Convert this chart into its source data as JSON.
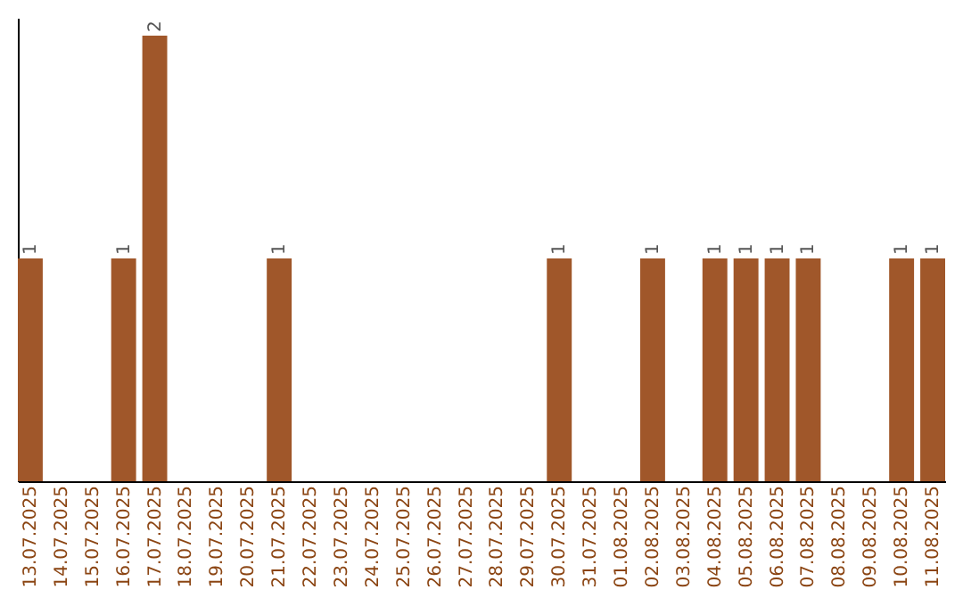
{
  "chart_data": {
    "type": "bar",
    "categories": [
      "13.07.2025",
      "14.07.2025",
      "15.07.2025",
      "16.07.2025",
      "17.07.2025",
      "18.07.2025",
      "19.07.2025",
      "20.07.2025",
      "21.07.2025",
      "22.07.2025",
      "23.07.2025",
      "24.07.2025",
      "25.07.2025",
      "26.07.2025",
      "27.07.2025",
      "28.07.2025",
      "29.07.2025",
      "30.07.2025",
      "31.07.2025",
      "01.08.2025",
      "02.08.2025",
      "03.08.2025",
      "04.08.2025",
      "05.08.2025",
      "06.08.2025",
      "07.08.2025",
      "08.08.2025",
      "09.08.2025",
      "10.08.2025",
      "11.08.2025"
    ],
    "values": [
      1,
      0,
      0,
      1,
      2,
      0,
      0,
      0,
      1,
      0,
      0,
      0,
      0,
      0,
      0,
      0,
      0,
      1,
      0,
      0,
      1,
      0,
      1,
      1,
      1,
      1,
      0,
      0,
      1,
      1
    ],
    "value_labels": [
      "1",
      null,
      null,
      "1",
      "2",
      null,
      null,
      null,
      "1",
      null,
      null,
      null,
      null,
      null,
      null,
      null,
      null,
      "1",
      null,
      null,
      "1",
      null,
      "1",
      "1",
      "1",
      "1",
      null,
      null,
      "1",
      "1"
    ],
    "color": "#a0572a",
    "ylim": [
      0,
      2.08
    ],
    "tick_labels": "x",
    "grid": false
  }
}
